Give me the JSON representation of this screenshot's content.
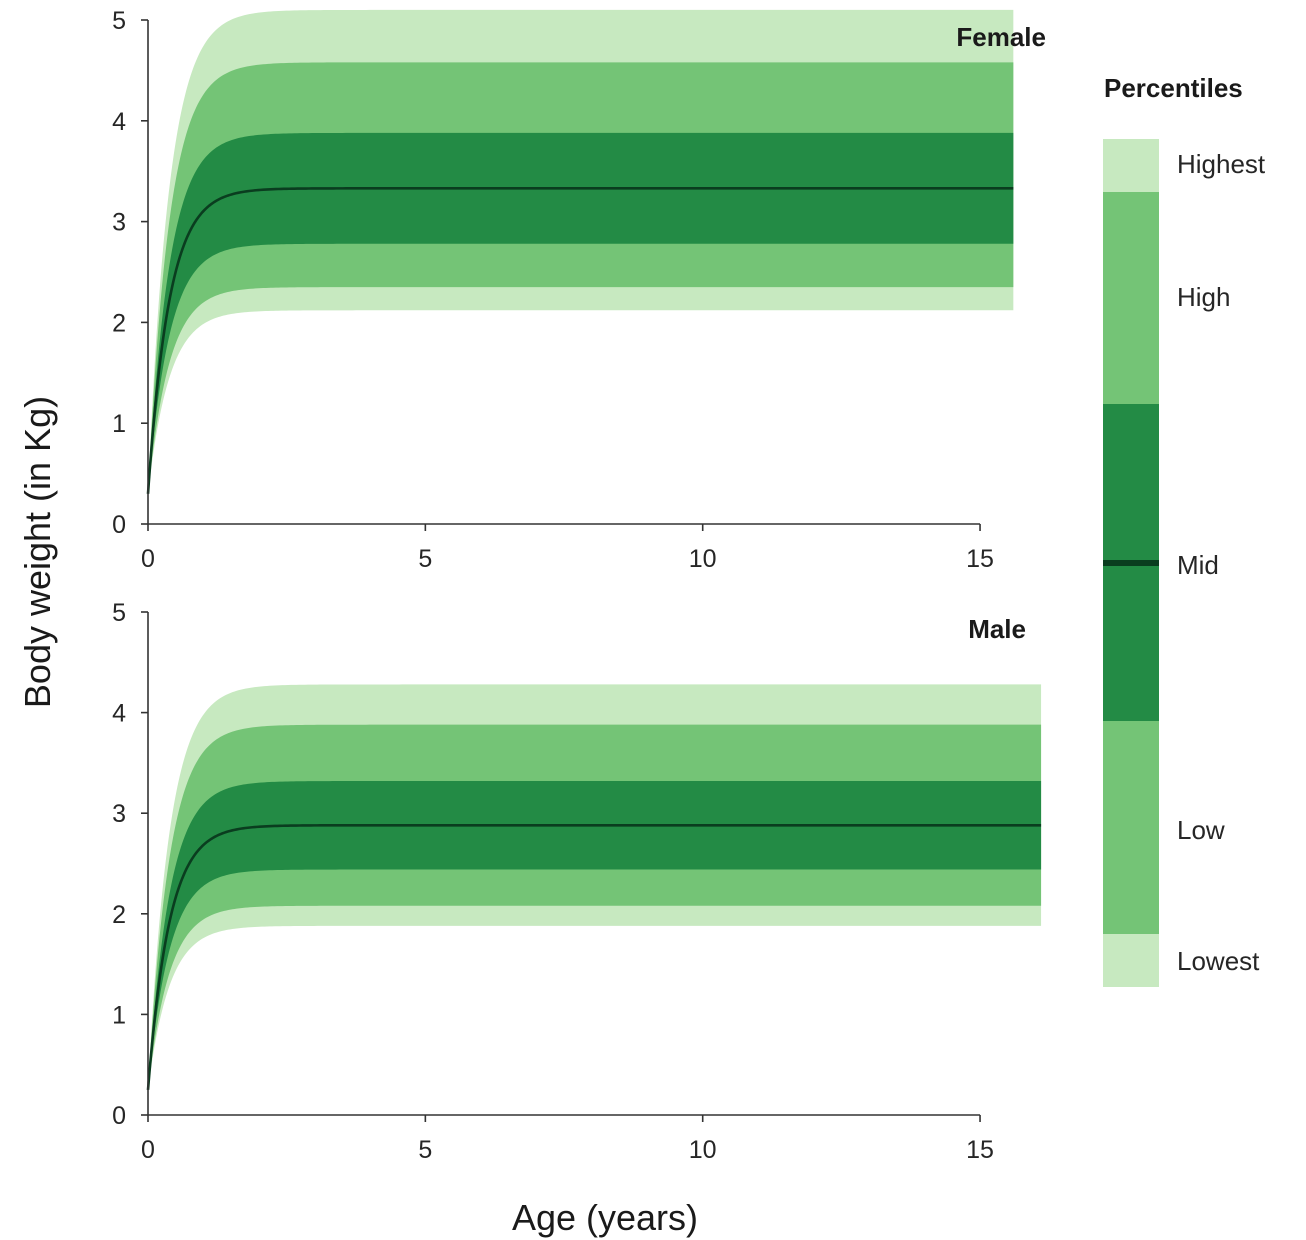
{
  "chart_data": {
    "type": "area",
    "xlabel": "Age (years)",
    "ylabel": "Body weight (in Kg)",
    "colors": {
      "outer": "#c7e9c0",
      "inner": "#74c476",
      "core": "#238b45",
      "median": "#0a3d1f"
    },
    "legend": {
      "title": "Percentiles",
      "position": "right",
      "labels": [
        "Highest",
        "High",
        "Mid",
        "Low",
        "Lowest"
      ]
    },
    "panels": [
      {
        "label": "Female",
        "xlim": [
          0,
          15.6
        ],
        "ylim": [
          0,
          5
        ],
        "x_ticks": [
          0,
          5,
          10,
          15
        ],
        "y_ticks": [
          0,
          1,
          2,
          3,
          4,
          5
        ],
        "start_value": 0.3,
        "growth_rate": 2.6,
        "x_max": 15.6,
        "plateau": {
          "lowest": 2.12,
          "low": 2.35,
          "mid_low": 2.78,
          "mid": 3.33,
          "mid_high": 3.88,
          "high": 4.58,
          "highest": 5.1
        }
      },
      {
        "label": "Male",
        "xlim": [
          0,
          16.1
        ],
        "ylim": [
          0,
          5
        ],
        "x_ticks": [
          0,
          5,
          10,
          15
        ],
        "y_ticks": [
          0,
          1,
          2,
          3,
          4,
          5
        ],
        "start_value": 0.25,
        "growth_rate": 2.6,
        "x_max": 16.1,
        "plateau": {
          "lowest": 1.88,
          "low": 2.08,
          "mid_low": 2.44,
          "mid": 2.88,
          "mid_high": 3.32,
          "high": 3.88,
          "highest": 4.28
        }
      }
    ]
  }
}
